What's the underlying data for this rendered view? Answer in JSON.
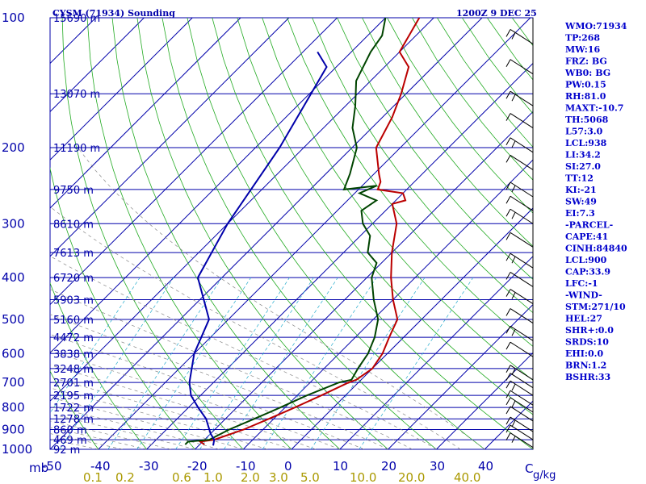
{
  "header": {
    "station": "CYSM (71934) Sounding",
    "time": "1200Z  9 DEC 25"
  },
  "indices": [
    "WMO:71934",
    "TP:268",
    "MW:16",
    "FRZ: BG",
    "WB0: BG",
    "PW:0.15",
    "RH:81.0",
    "MAXT:-10.7",
    "TH:5068",
    "L57:3.0",
    "LCL:938",
    "LI:34.2",
    "SI:27.0",
    "TT:12",
    "KI:-21",
    "SW:49",
    "EI:7.3",
    "-PARCEL-",
    "CAPE:41",
    "CINH:84840",
    "LCL:900",
    "CAP:33.9",
    "LFC:-1",
    "-WIND-",
    "STM:271/10",
    "HEL:27",
    "SHR+:0.0",
    "SRDS:10",
    "EHI:0.0",
    "BRN:1.2",
    "BSHR:33"
  ],
  "chart_data": {
    "type": "line",
    "title": "CYSM (71934) Sounding",
    "subtitle": "1200Z  9 DEC 25",
    "y_axis": {
      "unit": "mb",
      "scale": "log",
      "ticks": [
        100,
        200,
        300,
        400,
        500,
        600,
        700,
        800,
        900,
        1000
      ],
      "ylim": [
        1000,
        100
      ]
    },
    "x_axis": {
      "unit": "°C",
      "ticks": [
        -50,
        -40,
        -30,
        -20,
        -10,
        0,
        10,
        20,
        30,
        40
      ],
      "xlim": [
        -50,
        50
      ]
    },
    "mixing_ratio_axis": {
      "unit": "g/kg",
      "ticks": [
        "0.1",
        "0.2",
        "0.6",
        "1.0",
        "2.0",
        "3.0",
        "5.0",
        "10.0",
        "20.0",
        "40.0"
      ]
    },
    "heights": [
      {
        "p": 100,
        "label": "15690 m"
      },
      {
        "p": 150,
        "label": "13070 m"
      },
      {
        "p": 200,
        "label": "11190 m"
      },
      {
        "p": 250,
        "label": "9750 m"
      },
      {
        "p": 300,
        "label": "8610 m"
      },
      {
        "p": 350,
        "label": "7613 m"
      },
      {
        "p": 400,
        "label": "6720 m"
      },
      {
        "p": 450,
        "label": "5903 m"
      },
      {
        "p": 500,
        "label": "5160 m"
      },
      {
        "p": 550,
        "label": "4472 m"
      },
      {
        "p": 600,
        "label": "3838 m"
      },
      {
        "p": 650,
        "label": "3248 m"
      },
      {
        "p": 700,
        "label": "2701 m"
      },
      {
        "p": 750,
        "label": "2195 m"
      },
      {
        "p": 800,
        "label": "1722 m"
      },
      {
        "p": 850,
        "label": "1278 m"
      },
      {
        "p": 900,
        "label": "860 m"
      },
      {
        "p": 950,
        "label": "469 m"
      },
      {
        "p": 1000,
        "label": "92 m"
      }
    ],
    "grid": true,
    "series": [
      {
        "color": "#bb0000",
        "points": [
          [
            -19,
            975
          ],
          [
            -20.5,
            960
          ],
          [
            -18,
            950
          ],
          [
            -14,
            900
          ],
          [
            -11,
            850
          ],
          [
            -8,
            800
          ],
          [
            -5,
            750
          ],
          [
            -2,
            700
          ],
          [
            -1,
            690
          ],
          [
            0,
            650
          ],
          [
            -1,
            600
          ],
          [
            -3,
            550
          ],
          [
            -5,
            500
          ],
          [
            -10,
            450
          ],
          [
            -15,
            400
          ],
          [
            -20,
            350
          ],
          [
            -25,
            300
          ],
          [
            -30,
            270
          ],
          [
            -28,
            265
          ],
          [
            -30,
            255
          ],
          [
            -36,
            250
          ],
          [
            -37,
            240
          ],
          [
            -39,
            230
          ],
          [
            -45,
            200
          ],
          [
            -48,
            170
          ],
          [
            -51,
            150
          ],
          [
            -55,
            130
          ],
          [
            -60,
            120
          ],
          [
            -63,
            100
          ]
        ]
      },
      {
        "color": "#004400",
        "points": [
          [
            -23,
            975
          ],
          [
            -23,
            960
          ],
          [
            -19,
            950
          ],
          [
            -17,
            900
          ],
          [
            -14,
            850
          ],
          [
            -11,
            800
          ],
          [
            -8,
            750
          ],
          [
            -4,
            700
          ],
          [
            -2,
            690
          ],
          [
            -3,
            650
          ],
          [
            -4,
            600
          ],
          [
            -6,
            550
          ],
          [
            -9,
            500
          ],
          [
            -14,
            450
          ],
          [
            -19,
            400
          ],
          [
            -21,
            370
          ],
          [
            -25,
            350
          ],
          [
            -28,
            320
          ],
          [
            -32,
            300
          ],
          [
            -35,
            280
          ],
          [
            -34,
            265
          ],
          [
            -39,
            255
          ],
          [
            -37,
            245
          ],
          [
            -43,
            250
          ],
          [
            -45,
            230
          ],
          [
            -49,
            200
          ],
          [
            -54,
            180
          ],
          [
            -58,
            160
          ],
          [
            -63,
            140
          ],
          [
            -66,
            120
          ],
          [
            -67,
            110
          ],
          [
            -70,
            100
          ]
        ]
      },
      {
        "color": "#0000aa",
        "points": [
          [
            -17,
            980
          ],
          [
            -18,
            950
          ],
          [
            -20,
            920
          ],
          [
            -24,
            850
          ],
          [
            -28,
            800
          ],
          [
            -32,
            750
          ],
          [
            -35,
            700
          ],
          [
            -40,
            600
          ],
          [
            -44,
            500
          ],
          [
            -55,
            400
          ],
          [
            -60,
            300
          ],
          [
            -65,
            200
          ],
          [
            -72,
            130
          ],
          [
            -77,
            120
          ]
        ]
      }
    ],
    "isotherm_ticks": [
      -50,
      -40,
      -30,
      -20,
      -10,
      0,
      10,
      20,
      30,
      40
    ],
    "wind_barbs_p": [
      115,
      135,
      160,
      180,
      205,
      225,
      260,
      280,
      300,
      340,
      380,
      420,
      460,
      510,
      560,
      610,
      690,
      720,
      750,
      790,
      820,
      860,
      910,
      950,
      990
    ]
  }
}
